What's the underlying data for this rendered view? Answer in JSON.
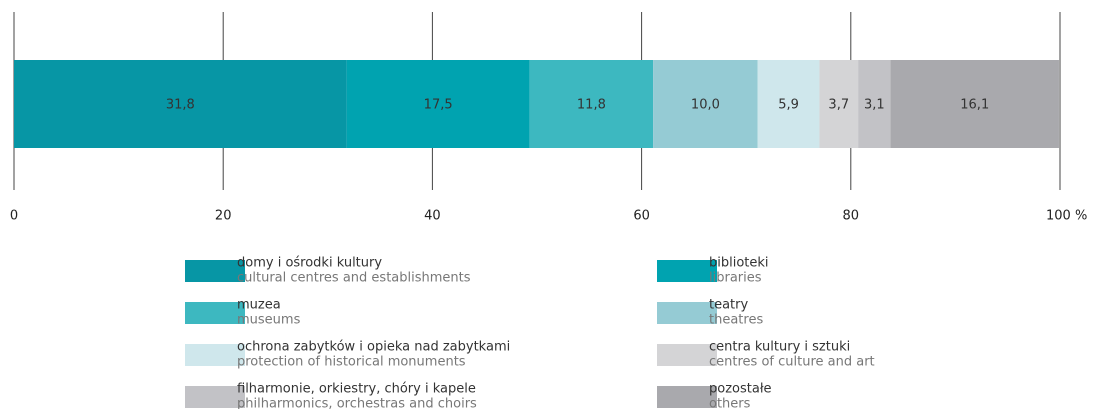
{
  "chart_data": {
    "type": "stacked-bar-horizontal",
    "xlim": [
      0,
      100
    ],
    "xticks": [
      0,
      20,
      40,
      60,
      80,
      {
        "value": 100,
        "label": "100 %"
      }
    ],
    "grid": true,
    "series": [
      {
        "name": "domy i ośrodki kultury",
        "name_en": "cultural centres and establishments",
        "color": "#0796a5",
        "values": [
          31.8
        ],
        "value_labels": [
          "31,8"
        ]
      },
      {
        "name": "biblioteki",
        "name_en": "libraries",
        "color": "#00a3b0",
        "values": [
          17.5
        ],
        "value_labels": [
          "17,5"
        ]
      },
      {
        "name": "muzea",
        "name_en": "museums",
        "color": "#3db8c0",
        "values": [
          11.8
        ],
        "value_labels": [
          "11,8"
        ]
      },
      {
        "name": "teatry",
        "name_en": "theatres",
        "color": "#95cbd4",
        "values": [
          10.0
        ],
        "value_labels": [
          "10,0"
        ]
      },
      {
        "name": "ochrona zabytków i opieka nad zabytkami",
        "name_en": "protection of historical monuments",
        "color": "#cfe7ec",
        "values": [
          5.9
        ],
        "value_labels": [
          "5,9"
        ]
      },
      {
        "name": "centra kultury i sztuki",
        "name_en": "centres of culture and art",
        "color": "#d4d4d6",
        "values": [
          3.7
        ],
        "value_labels": [
          "3,7"
        ]
      },
      {
        "name": "filharmonie, orkiestry, chóry i kapele",
        "name_en": "philharmonics, orchestras and choirs",
        "color": "#c2c2c6",
        "values": [
          3.1
        ],
        "value_labels": [
          "3,1"
        ]
      },
      {
        "name": "pozostałe",
        "name_en": "others",
        "color": "#a9a9ad",
        "values": [
          16.1
        ],
        "value_labels": [
          "16,1"
        ]
      }
    ]
  }
}
